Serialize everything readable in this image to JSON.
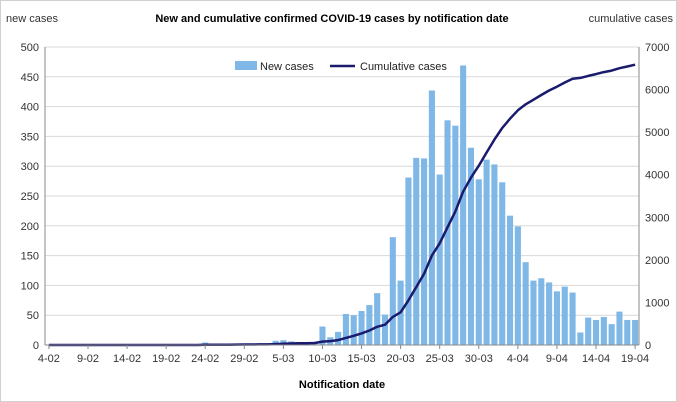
{
  "chart_data": {
    "type": "bar+line",
    "title": "New and cumulative confirmed COVID-19 cases by notification date",
    "ylabel_left": "new cases",
    "ylabel_right": "cumulative cases",
    "xlabel": "Notification date",
    "ylim_left": [
      0,
      500
    ],
    "ylim_right": [
      0,
      7000
    ],
    "yticks_left": [
      "0",
      "50",
      "100",
      "150",
      "200",
      "250",
      "300",
      "350",
      "400",
      "450",
      "500"
    ],
    "yticks_right": [
      "0",
      "1000",
      "2000",
      "3000",
      "4000",
      "5000",
      "6000",
      "7000"
    ],
    "x_ticks": [
      "4-02",
      "9-02",
      "14-02",
      "19-02",
      "24-02",
      "29-02",
      "5-03",
      "10-03",
      "15-03",
      "20-03",
      "25-03",
      "30-03",
      "4-04",
      "9-04",
      "14-04",
      "19-04"
    ],
    "grid": "horizontal",
    "legend_position": "top",
    "categories": [
      "4-02",
      "5-02",
      "6-02",
      "7-02",
      "8-02",
      "9-02",
      "10-02",
      "11-02",
      "12-02",
      "13-02",
      "14-02",
      "15-02",
      "16-02",
      "17-02",
      "18-02",
      "19-02",
      "20-02",
      "21-02",
      "22-02",
      "23-02",
      "24-02",
      "25-02",
      "26-02",
      "27-02",
      "28-02",
      "29-02",
      "1-03",
      "2-03",
      "3-03",
      "4-03",
      "5-03",
      "6-03",
      "7-03",
      "8-03",
      "9-03",
      "10-03",
      "11-03",
      "12-03",
      "13-03",
      "14-03",
      "15-03",
      "16-03",
      "17-03",
      "18-03",
      "19-03",
      "20-03",
      "21-03",
      "22-03",
      "23-03",
      "24-03",
      "25-03",
      "26-03",
      "27-03",
      "28-03",
      "29-03",
      "30-03",
      "31-03",
      "1-04",
      "2-04",
      "3-04",
      "4-04",
      "5-04",
      "6-04",
      "7-04",
      "8-04",
      "9-04",
      "10-04",
      "11-04",
      "12-04",
      "13-04",
      "14-04",
      "15-04",
      "16-04",
      "17-04",
      "18-04",
      "19-04"
    ],
    "series": [
      {
        "name": "New cases",
        "type": "bar",
        "color": "#7fb8e6",
        "values": [
          0,
          0,
          0,
          0,
          0,
          0,
          0,
          0,
          0,
          0,
          0,
          0,
          0,
          0,
          0,
          0,
          0,
          0,
          0,
          0,
          4,
          2,
          1,
          1,
          2,
          1,
          1,
          1,
          1,
          7,
          8,
          6,
          5,
          3,
          5,
          31,
          13,
          22,
          52,
          50,
          57,
          67,
          87,
          51,
          181,
          108,
          281,
          314,
          313,
          427,
          286,
          377,
          368,
          469,
          331,
          278,
          311,
          303,
          273,
          217,
          199,
          139,
          108,
          112,
          105,
          90,
          98,
          88,
          21,
          46,
          42,
          47,
          35,
          56,
          42,
          42
        ]
      },
      {
        "name": "Cumulative cases",
        "type": "line",
        "color": "#1a1a6e",
        "values": [
          0,
          0,
          0,
          0,
          0,
          0,
          0,
          0,
          0,
          0,
          0,
          0,
          0,
          0,
          0,
          0,
          0,
          0,
          0,
          0,
          4,
          6,
          7,
          8,
          10,
          11,
          12,
          13,
          14,
          21,
          29,
          35,
          40,
          43,
          48,
          79,
          92,
          114,
          166,
          216,
          273,
          340,
          427,
          478,
          659,
          767,
          1048,
          1362,
          1675,
          2102,
          2388,
          2765,
          3133,
          3602,
          3933,
          4211,
          4522,
          4825,
          5098,
          5315,
          5514,
          5653,
          5761,
          5873,
          5978,
          6068,
          6166,
          6254,
          6275,
          6321,
          6363,
          6410,
          6445,
          6501,
          6543,
          6585
        ]
      }
    ]
  }
}
